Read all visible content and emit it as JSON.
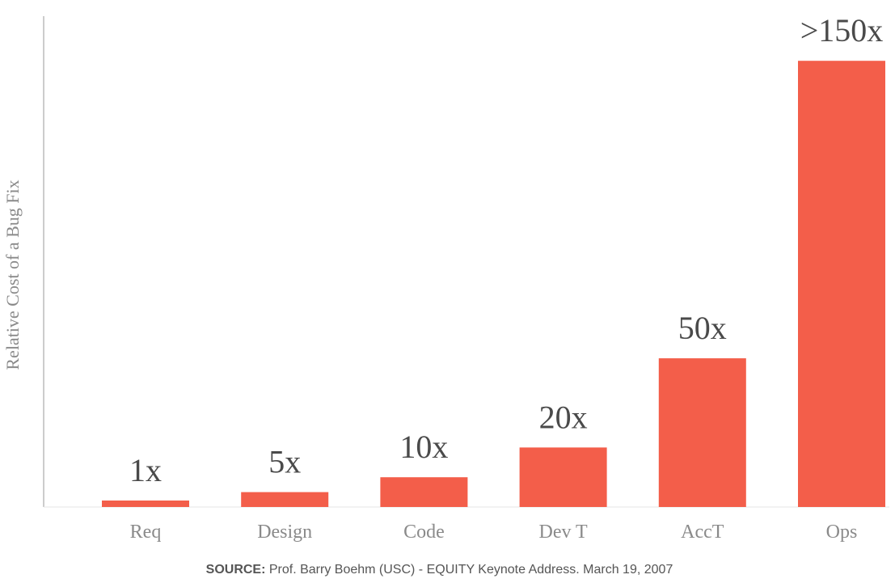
{
  "chart_data": {
    "type": "bar",
    "categories": [
      "Req",
      "Design",
      "Code",
      "Dev T",
      "AccT",
      "Ops"
    ],
    "values": [
      1,
      5,
      10,
      20,
      50,
      150
    ],
    "data_labels": [
      "1x",
      "5x",
      "10x",
      "20x",
      "50x",
      ">150x"
    ],
    "title": "",
    "xlabel": "",
    "ylabel": "Relative Cost of a Bug Fix",
    "ylim": [
      0,
      165
    ],
    "grid": false,
    "legend": "none",
    "bar_color": "#f35e4a"
  },
  "source": {
    "label": "SOURCE:",
    "text": "Prof. Barry Boehm (USC)  - EQUITY Keynote Address. March 19, 2007"
  }
}
